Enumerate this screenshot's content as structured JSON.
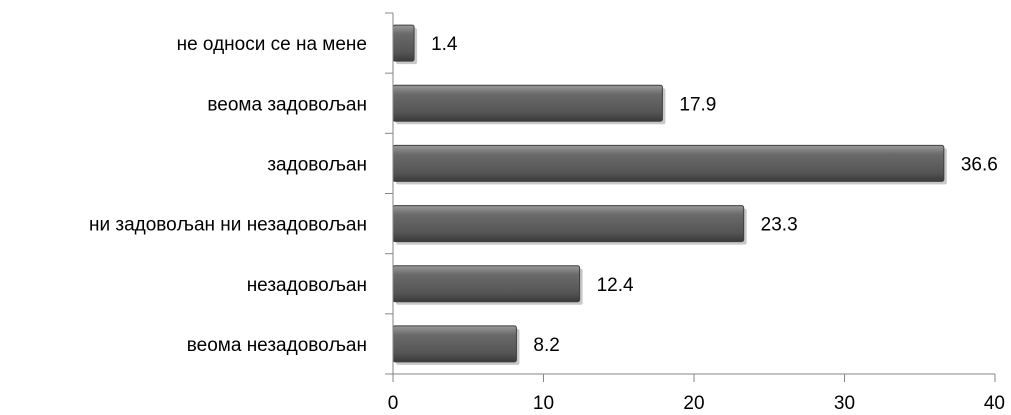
{
  "chart_data": {
    "type": "bar",
    "orientation": "horizontal",
    "categories": [
      "не односи се на мене",
      "веома задовољан",
      "задовољан",
      "ни задовољан ни незадовољан",
      "незадовољан",
      "веома незадовољан"
    ],
    "values": [
      1.4,
      17.9,
      36.6,
      23.3,
      12.4,
      8.2
    ],
    "data_labels": [
      "1.4",
      "17.9",
      "36.6",
      "23.3",
      "12.4",
      "8.2"
    ],
    "title": "",
    "xlabel": "",
    "ylabel": "",
    "xlim": [
      0,
      40
    ],
    "xticks": [
      0,
      10,
      20,
      30,
      40
    ],
    "xtick_labels": [
      "0",
      "10",
      "20",
      "30",
      "40"
    ],
    "grid": false,
    "legend": "none",
    "bar_color": "#5b5b5b"
  }
}
